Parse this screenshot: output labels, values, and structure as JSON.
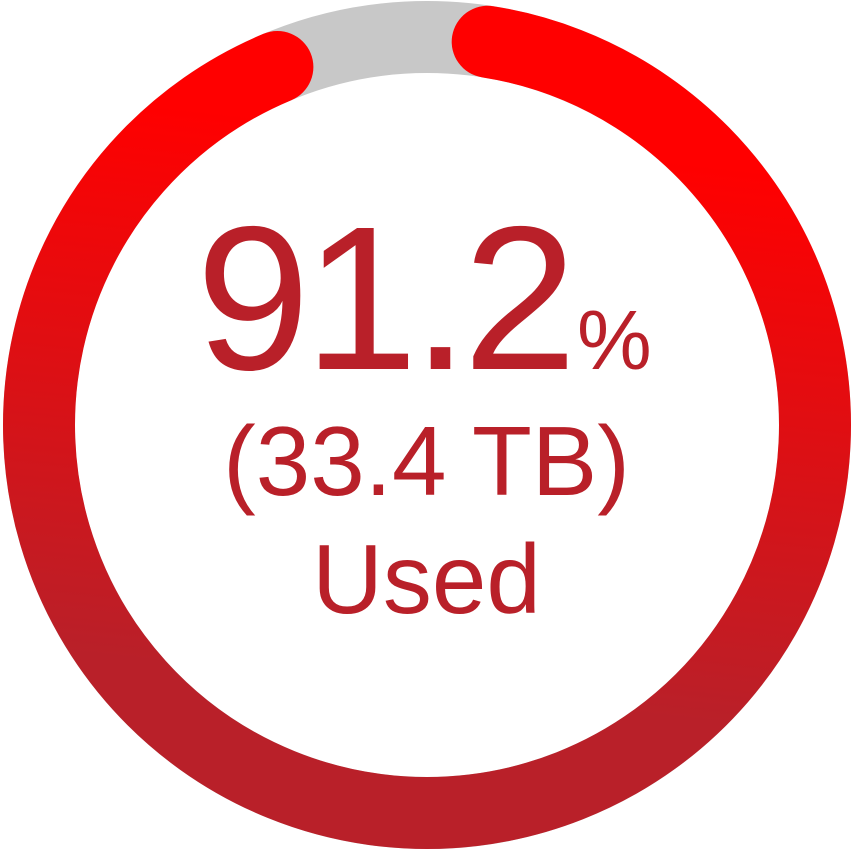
{
  "chart_data": {
    "type": "pie",
    "subtype": "donut-gauge",
    "value_percent": 91.2,
    "value_text": "91.2",
    "unit_text": "%",
    "used_text": "(33.4 TB)",
    "label_text": "Used",
    "colors": {
      "used": "#b92029",
      "used_gradient_end": "#ff0000",
      "track": "#c8c8c8",
      "text": "#b92029"
    }
  }
}
